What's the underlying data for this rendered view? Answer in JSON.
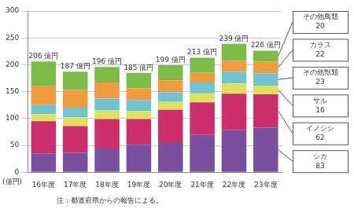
{
  "chart_data": {
    "type": "bar",
    "stacked": true,
    "grid": true,
    "legend": "right",
    "categories": [
      "16年度",
      "17年度",
      "18年度",
      "19年度",
      "20年度",
      "21年度",
      "22年度",
      "23年度"
    ],
    "series": [
      {
        "name": "シカ",
        "color": "#7b4fa0",
        "values": [
          35,
          36,
          44,
          51,
          56,
          70,
          78,
          83
        ]
      },
      {
        "name": "イノシシ",
        "color": "#cc2f6a",
        "values": [
          60,
          50,
          55,
          48,
          60,
          60,
          68,
          62
        ]
      },
      {
        "name": "サル",
        "color": "#dfe05c",
        "values": [
          13,
          16,
          16,
          15,
          15,
          17,
          19,
          16
        ]
      },
      {
        "name": "その他獣類",
        "color": "#6fc4d4",
        "values": [
          17,
          18,
          22,
          20,
          18,
          20,
          22,
          23
        ]
      },
      {
        "name": "カラス",
        "color": "#f29b3e",
        "values": [
          35,
          33,
          30,
          22,
          22,
          18,
          20,
          22
        ]
      },
      {
        "name": "その他鳥類",
        "color": "#7cbc47",
        "values": [
          46,
          34,
          29,
          29,
          28,
          28,
          32,
          20
        ]
      }
    ],
    "totals": [
      206,
      187,
      196,
      185,
      199,
      213,
      239,
      226
    ],
    "total_labels": [
      "206 億円",
      "187 億円",
      "196 億円",
      "185 億円",
      "199 億円",
      "213 億円",
      "239 億円",
      "226 億円"
    ],
    "y_label": "(億円)",
    "note": "注：都道府県からの報告による。",
    "ylim": [
      0,
      300
    ],
    "yticks": [
      0,
      50,
      100,
      150,
      200,
      250,
      300
    ]
  }
}
